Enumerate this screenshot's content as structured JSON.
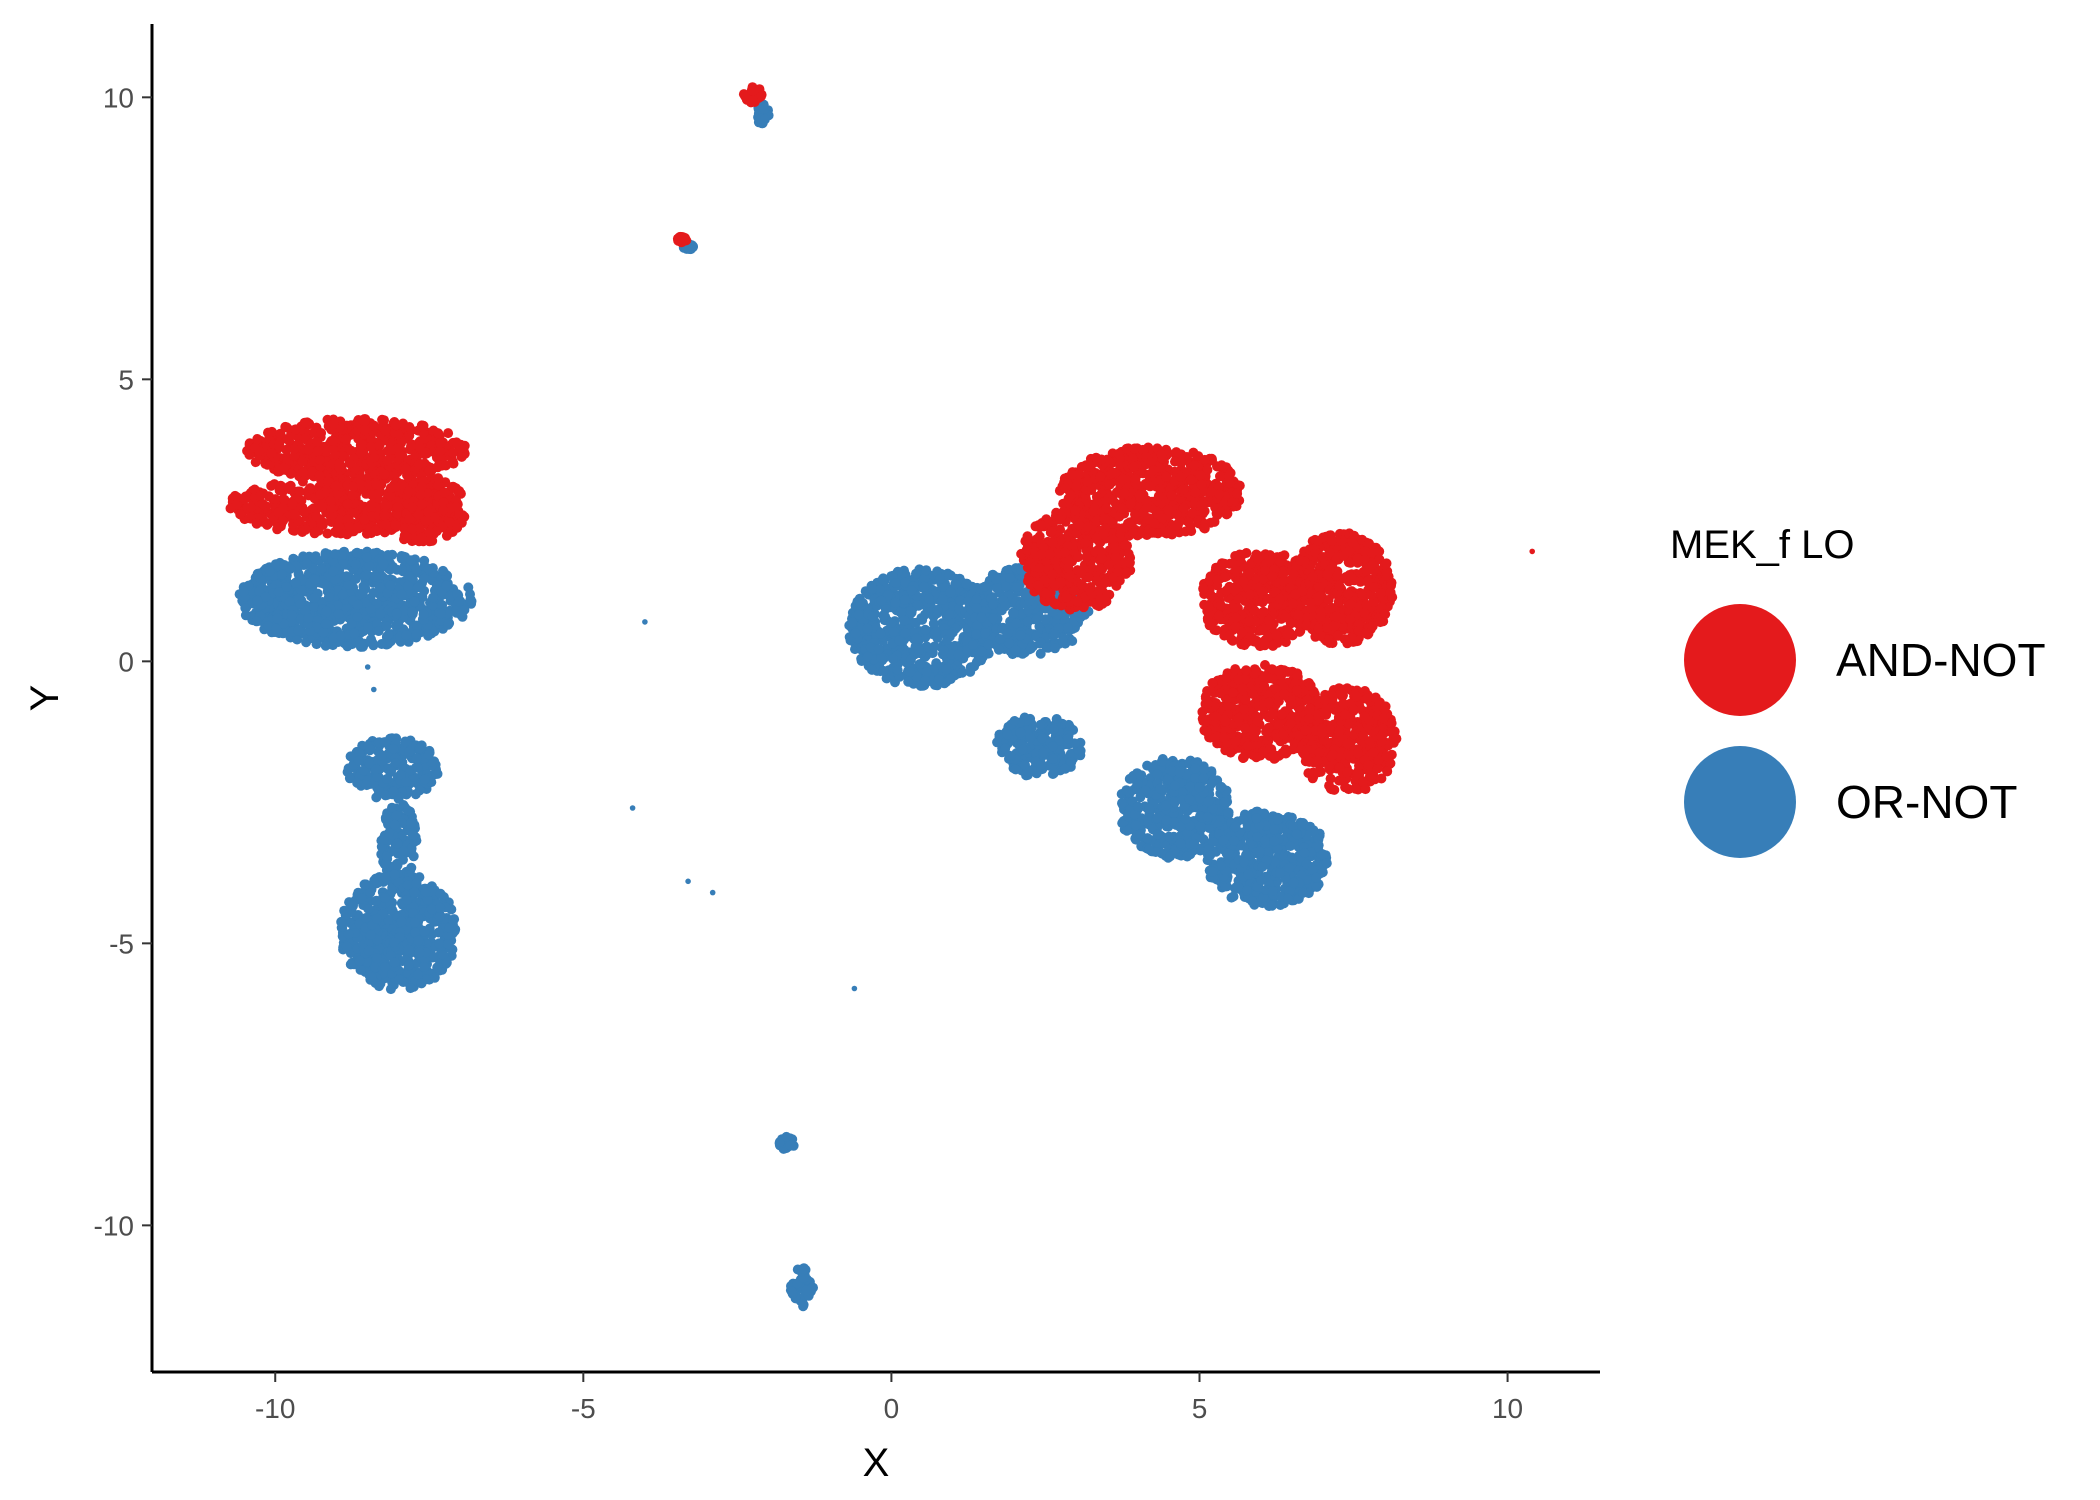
{
  "chart_data": {
    "type": "scatter",
    "title": "",
    "xlabel": "X",
    "ylabel": "Y",
    "xlim": [
      -12,
      11.5
    ],
    "ylim": [
      -12.6,
      11.3
    ],
    "x_ticks": [
      -10,
      -5,
      0,
      5,
      10
    ],
    "y_ticks": [
      -10,
      -5,
      0,
      5,
      10
    ],
    "grid": false,
    "legend": {
      "title": "MEK_f LO",
      "placement": "right",
      "entries": [
        {
          "label": "AND-NOT",
          "color": "#E41A1C"
        },
        {
          "label": "OR-NOT",
          "color": "#377EB8"
        }
      ]
    },
    "series": [
      {
        "name": "OR-NOT",
        "color": "#377EB8",
        "clusters": [
          {
            "cx": -8.7,
            "cy": 1.1,
            "rx": 1.9,
            "ry": 0.85
          },
          {
            "cx": -8.1,
            "cy": -1.9,
            "rx": 0.75,
            "ry": 0.55
          },
          {
            "cx": -8.0,
            "cy": -3.2,
            "rx": 0.3,
            "ry": 0.7
          },
          {
            "cx": -8.0,
            "cy": -4.8,
            "rx": 0.95,
            "ry": 1.05
          },
          {
            "cx": 0.5,
            "cy": 0.6,
            "rx": 1.2,
            "ry": 1.05
          },
          {
            "cx": 2.2,
            "cy": 0.9,
            "rx": 1.0,
            "ry": 0.8
          },
          {
            "cx": 2.4,
            "cy": -1.5,
            "rx": 0.7,
            "ry": 0.55
          },
          {
            "cx": 4.6,
            "cy": -2.6,
            "rx": 0.9,
            "ry": 0.9
          },
          {
            "cx": 6.1,
            "cy": -3.5,
            "rx": 1.0,
            "ry": 0.85
          },
          {
            "cx": -2.1,
            "cy": 9.7,
            "rx": 0.12,
            "ry": 0.2
          },
          {
            "cx": -3.3,
            "cy": 7.35,
            "rx": 0.08,
            "ry": 0.05
          },
          {
            "cx": -1.7,
            "cy": -8.55,
            "rx": 0.12,
            "ry": 0.12
          },
          {
            "cx": -1.45,
            "cy": -11.1,
            "rx": 0.2,
            "ry": 0.35
          }
        ],
        "outliers": [
          [
            -4.0,
            0.7
          ],
          [
            -8.5,
            -0.1
          ],
          [
            -8.4,
            -0.5
          ],
          [
            -4.2,
            -2.6
          ],
          [
            -3.3,
            -3.9
          ],
          [
            -2.9,
            -4.1
          ],
          [
            -0.6,
            -5.8
          ]
        ]
      },
      {
        "name": "AND-NOT",
        "color": "#E41A1C",
        "clusters": [
          {
            "cx": -8.7,
            "cy": 3.75,
            "rx": 1.8,
            "ry": 0.55
          },
          {
            "cx": -8.9,
            "cy": 2.75,
            "rx": 1.9,
            "ry": 0.5
          },
          {
            "cx": -7.6,
            "cy": 2.7,
            "rx": 0.7,
            "ry": 0.6
          },
          {
            "cx": 4.2,
            "cy": 3.0,
            "rx": 1.5,
            "ry": 0.8
          },
          {
            "cx": 3.0,
            "cy": 1.8,
            "rx": 0.9,
            "ry": 0.9
          },
          {
            "cx": 6.0,
            "cy": 1.1,
            "rx": 1.0,
            "ry": 0.85
          },
          {
            "cx": 7.3,
            "cy": 1.3,
            "rx": 0.85,
            "ry": 1.0
          },
          {
            "cx": 6.0,
            "cy": -0.9,
            "rx": 1.0,
            "ry": 0.85
          },
          {
            "cx": 7.4,
            "cy": -1.4,
            "rx": 0.8,
            "ry": 0.95
          },
          {
            "cx": -2.25,
            "cy": 10.05,
            "rx": 0.15,
            "ry": 0.15
          },
          {
            "cx": -3.4,
            "cy": 7.48,
            "rx": 0.08,
            "ry": 0.05
          }
        ],
        "outliers": [
          [
            10.4,
            1.95
          ]
        ]
      }
    ]
  }
}
